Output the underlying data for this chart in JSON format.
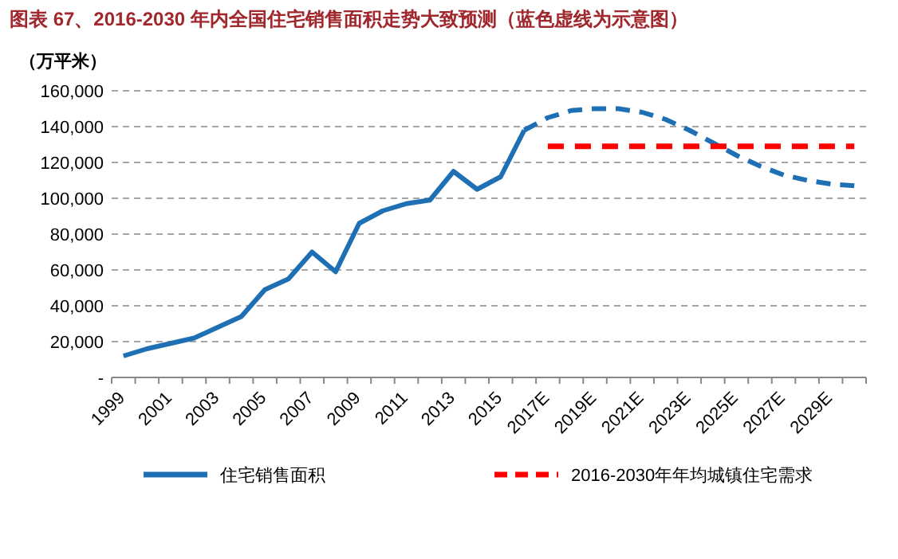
{
  "chart_data": {
    "type": "line",
    "title": "图表 67、2016-2030 年内全国住宅销售面积走势大致预测（蓝色虚线为示意图）",
    "ylabel": "（万平米）",
    "categories": [
      "1999",
      null,
      "2001",
      null,
      "2003",
      null,
      "2005",
      null,
      "2007",
      null,
      "2009",
      null,
      "2011",
      null,
      "2013",
      null,
      "2015",
      null,
      "2017E",
      null,
      "2019E",
      null,
      "2021E",
      null,
      "2023E",
      null,
      "2025E",
      null,
      "2027E",
      null,
      "2029E",
      null
    ],
    "series": [
      {
        "name": "住宅销售面积",
        "color": "#1f6fb5",
        "line_style": "solid",
        "values": [
          12000,
          16000,
          19000,
          22000,
          28000,
          34000,
          49000,
          55000,
          70000,
          59000,
          86000,
          93000,
          97000,
          99000,
          115000,
          105000,
          112000,
          138000,
          null,
          null,
          null,
          null,
          null,
          null,
          null,
          null,
          null,
          null,
          null,
          null,
          null,
          null
        ]
      },
      {
        "color": "#1f6fb5",
        "line_style": "dashed",
        "values": [
          null,
          null,
          null,
          null,
          null,
          null,
          null,
          null,
          null,
          null,
          null,
          null,
          null,
          null,
          null,
          null,
          null,
          138000,
          145000,
          149000,
          150000,
          150000,
          148000,
          144000,
          138000,
          131000,
          124000,
          118000,
          113000,
          110000,
          108000,
          107000
        ]
      },
      {
        "name": "2016-2030年年均城镇住宅需求",
        "color": "#ff0000",
        "line_style": "dashed",
        "values": [
          null,
          null,
          null,
          null,
          null,
          null,
          null,
          null,
          null,
          null,
          null,
          null,
          null,
          null,
          null,
          null,
          null,
          null,
          129000,
          129000,
          129000,
          129000,
          129000,
          129000,
          129000,
          129000,
          129000,
          129000,
          129000,
          129000,
          129000,
          129000
        ]
      }
    ],
    "ylim": [
      0,
      160000
    ],
    "yticks": [
      {
        "value": 0,
        "label": "-"
      },
      {
        "value": 20000,
        "label": "20,000"
      },
      {
        "value": 40000,
        "label": "40,000"
      },
      {
        "value": 60000,
        "label": "60,000"
      },
      {
        "value": 80000,
        "label": "80,000"
      },
      {
        "value": 100000,
        "label": "100,000"
      },
      {
        "value": 120000,
        "label": "120,000"
      },
      {
        "value": 140000,
        "label": "140,000"
      },
      {
        "value": 160000,
        "label": "160,000"
      }
    ],
    "grid": "y",
    "legend": "bottom",
    "marker": "none"
  }
}
